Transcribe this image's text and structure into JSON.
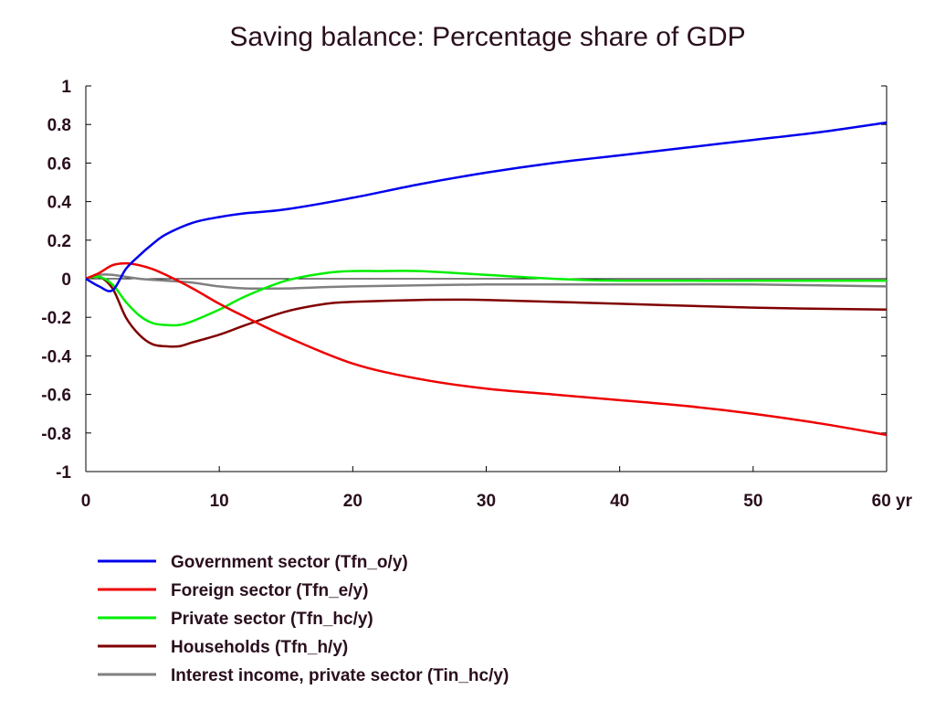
{
  "chart_data": {
    "type": "line",
    "title": "Saving balance: Percentage share of GDP",
    "xlabel": "",
    "ylabel": "",
    "x_unit_label": "yr",
    "xlim": [
      0,
      60
    ],
    "ylim": [
      -1,
      1
    ],
    "x_ticks": [
      0,
      10,
      20,
      30,
      40,
      50,
      60
    ],
    "x_tick_labels": [
      "0",
      "10",
      "20",
      "30",
      "40",
      "50",
      "60 yr"
    ],
    "y_ticks": [
      -1,
      -0.8,
      -0.6,
      -0.4,
      -0.2,
      0,
      0.2,
      0.4,
      0.6,
      0.8,
      1
    ],
    "y_tick_labels": [
      "-1",
      "-0.8",
      "-0.6",
      "-0.4",
      "-0.2",
      "0",
      "0.2",
      "0.4",
      "0.6",
      "0.8",
      "1"
    ],
    "grid": false,
    "zero_line": true,
    "legend_position": "bottom",
    "series": [
      {
        "name": "Government sector (Tfn_o/y)",
        "color": "#0000ee",
        "points": [
          [
            0,
            0
          ],
          [
            1,
            -0.04
          ],
          [
            2,
            -0.06
          ],
          [
            3,
            0.05
          ],
          [
            4,
            0.12
          ],
          [
            5,
            0.18
          ],
          [
            6,
            0.23
          ],
          [
            8,
            0.29
          ],
          [
            10,
            0.32
          ],
          [
            12,
            0.34
          ],
          [
            15,
            0.36
          ],
          [
            20,
            0.42
          ],
          [
            25,
            0.49
          ],
          [
            30,
            0.55
          ],
          [
            35,
            0.6
          ],
          [
            40,
            0.64
          ],
          [
            45,
            0.68
          ],
          [
            50,
            0.72
          ],
          [
            55,
            0.76
          ],
          [
            60,
            0.81
          ]
        ]
      },
      {
        "name": "Foreign sector (Tfn_e/y)",
        "color": "#ee0000",
        "points": [
          [
            0,
            0
          ],
          [
            1,
            0.03
          ],
          [
            2,
            0.07
          ],
          [
            3,
            0.08
          ],
          [
            4,
            0.07
          ],
          [
            5,
            0.05
          ],
          [
            6,
            0.02
          ],
          [
            8,
            -0.05
          ],
          [
            10,
            -0.13
          ],
          [
            12,
            -0.2
          ],
          [
            15,
            -0.3
          ],
          [
            20,
            -0.44
          ],
          [
            25,
            -0.52
          ],
          [
            30,
            -0.57
          ],
          [
            35,
            -0.6
          ],
          [
            40,
            -0.63
          ],
          [
            45,
            -0.66
          ],
          [
            50,
            -0.7
          ],
          [
            55,
            -0.75
          ],
          [
            60,
            -0.81
          ]
        ]
      },
      {
        "name": "Private sector (Tfn_hc/y)",
        "color": "#00ee00",
        "points": [
          [
            0,
            0
          ],
          [
            1,
            0.01
          ],
          [
            2,
            -0.03
          ],
          [
            3,
            -0.12
          ],
          [
            4,
            -0.19
          ],
          [
            5,
            -0.23
          ],
          [
            6,
            -0.24
          ],
          [
            7,
            -0.24
          ],
          [
            8,
            -0.22
          ],
          [
            10,
            -0.16
          ],
          [
            12,
            -0.09
          ],
          [
            15,
            -0.01
          ],
          [
            18,
            0.03
          ],
          [
            20,
            0.04
          ],
          [
            22,
            0.04
          ],
          [
            25,
            0.04
          ],
          [
            30,
            0.02
          ],
          [
            35,
            0.0
          ],
          [
            40,
            -0.01
          ],
          [
            50,
            -0.01
          ],
          [
            60,
            -0.01
          ]
        ]
      },
      {
        "name": "Households (Tfn_h/y)",
        "color": "#800000",
        "points": [
          [
            0,
            0
          ],
          [
            1,
            0.01
          ],
          [
            2,
            -0.05
          ],
          [
            3,
            -0.2
          ],
          [
            4,
            -0.29
          ],
          [
            5,
            -0.34
          ],
          [
            6,
            -0.35
          ],
          [
            7,
            -0.35
          ],
          [
            8,
            -0.33
          ],
          [
            10,
            -0.29
          ],
          [
            12,
            -0.24
          ],
          [
            15,
            -0.17
          ],
          [
            18,
            -0.13
          ],
          [
            20,
            -0.12
          ],
          [
            25,
            -0.11
          ],
          [
            30,
            -0.11
          ],
          [
            40,
            -0.13
          ],
          [
            50,
            -0.15
          ],
          [
            60,
            -0.16
          ]
        ]
      },
      {
        "name": "Interest income, private sector (Tin_hc/y)",
        "color": "#808080",
        "points": [
          [
            0,
            0
          ],
          [
            1,
            0.02
          ],
          [
            2,
            0.02
          ],
          [
            4,
            0.0
          ],
          [
            6,
            -0.01
          ],
          [
            8,
            -0.02
          ],
          [
            10,
            -0.04
          ],
          [
            12,
            -0.05
          ],
          [
            15,
            -0.05
          ],
          [
            20,
            -0.04
          ],
          [
            30,
            -0.03
          ],
          [
            40,
            -0.03
          ],
          [
            50,
            -0.03
          ],
          [
            60,
            -0.04
          ]
        ]
      }
    ]
  }
}
